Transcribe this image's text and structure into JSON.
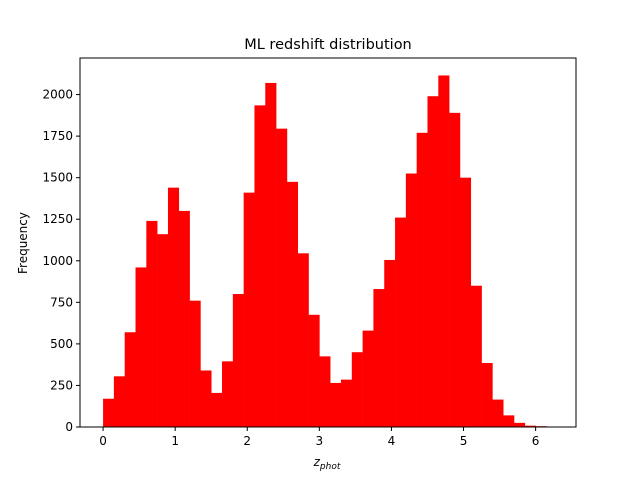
{
  "chart_data": {
    "type": "bar",
    "title": "ML redshift distribution",
    "xlabel_main": "z",
    "xlabel_sub": "phot",
    "ylabel": "Frequency",
    "xlim": [
      -0.32,
      6.56
    ],
    "ylim": [
      0,
      2220
    ],
    "x_ticks": [
      0,
      1,
      2,
      3,
      4,
      5,
      6
    ],
    "y_ticks": [
      0,
      250,
      500,
      750,
      1000,
      1250,
      1500,
      1750,
      2000
    ],
    "bin_start": 0,
    "bin_width": 0.15,
    "bar_color": "#ff0000",
    "grid": false,
    "values": [
      170,
      305,
      570,
      960,
      1240,
      1160,
      1440,
      1300,
      760,
      340,
      205,
      395,
      800,
      1410,
      1935,
      2070,
      1795,
      1475,
      1045,
      675,
      425,
      265,
      285,
      450,
      580,
      830,
      1005,
      1260,
      1525,
      1770,
      1990,
      2115,
      1890,
      1500,
      850,
      385,
      165,
      70,
      25,
      8,
      5,
      3
    ]
  }
}
